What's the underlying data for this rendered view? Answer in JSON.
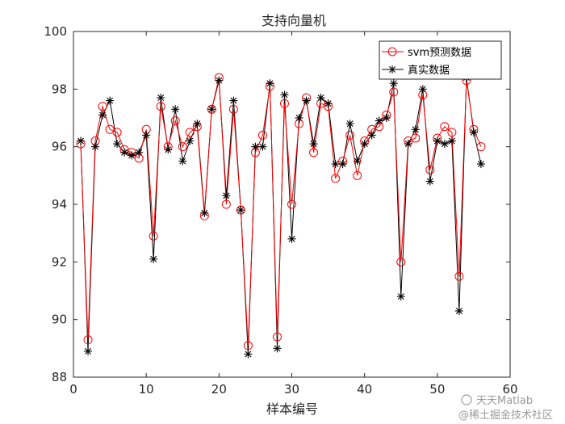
{
  "chart_data": {
    "type": "line",
    "title": "支持向量机",
    "xlabel": "样本编号",
    "ylabel": "",
    "xlim": [
      0,
      60
    ],
    "ylim": [
      88,
      100
    ],
    "xticks": [
      "0",
      "10",
      "20",
      "30",
      "40",
      "50",
      "60"
    ],
    "yticks": [
      "88",
      "90",
      "92",
      "94",
      "96",
      "98",
      "100"
    ],
    "grid": false,
    "legend_position": "top-right",
    "series": [
      {
        "name": "svm预测数据",
        "color": "#ff0000",
        "marker": "circle",
        "x": [
          1,
          2,
          3,
          4,
          5,
          6,
          7,
          8,
          9,
          10,
          11,
          12,
          13,
          14,
          15,
          16,
          17,
          18,
          19,
          20,
          21,
          22,
          23,
          24,
          25,
          26,
          27,
          28,
          29,
          30,
          31,
          32,
          33,
          34,
          35,
          36,
          37,
          38,
          39,
          40,
          41,
          42,
          43,
          44,
          45,
          46,
          47,
          48,
          49,
          50,
          51,
          52,
          53,
          54,
          55,
          56
        ],
        "values": [
          96.1,
          89.3,
          96.2,
          97.4,
          96.6,
          96.5,
          95.9,
          95.8,
          95.6,
          96.6,
          92.9,
          97.4,
          96.0,
          96.9,
          96.0,
          96.5,
          96.7,
          93.6,
          97.3,
          98.4,
          94.0,
          97.3,
          93.8,
          89.1,
          95.8,
          96.4,
          98.1,
          89.4,
          97.5,
          94.0,
          96.8,
          97.7,
          95.8,
          97.5,
          97.4,
          94.9,
          95.5,
          96.4,
          95.0,
          96.2,
          96.6,
          96.7,
          97.1,
          97.9,
          92.0,
          96.2,
          96.3,
          97.8,
          95.2,
          96.3,
          96.7,
          96.5,
          91.5,
          98.3,
          96.6,
          96.0
        ]
      },
      {
        "name": "真实数据",
        "color": "#000000",
        "marker": "asterisk",
        "x": [
          1,
          2,
          3,
          4,
          5,
          6,
          7,
          8,
          9,
          10,
          11,
          12,
          13,
          14,
          15,
          16,
          17,
          18,
          19,
          20,
          21,
          22,
          23,
          24,
          25,
          26,
          27,
          28,
          29,
          30,
          31,
          32,
          33,
          34,
          35,
          36,
          37,
          38,
          39,
          40,
          41,
          42,
          43,
          44,
          45,
          46,
          47,
          48,
          49,
          50,
          51,
          52,
          53,
          54,
          55,
          56
        ],
        "values": [
          96.2,
          88.9,
          96.0,
          97.1,
          97.6,
          96.1,
          95.8,
          95.7,
          95.8,
          96.4,
          92.1,
          97.7,
          95.9,
          97.3,
          95.5,
          96.2,
          96.8,
          93.7,
          97.3,
          98.3,
          94.3,
          97.6,
          93.8,
          88.8,
          96.0,
          96.0,
          98.2,
          89.0,
          97.8,
          92.8,
          97.0,
          97.6,
          96.1,
          97.7,
          97.5,
          95.4,
          95.4,
          96.8,
          95.5,
          96.1,
          96.4,
          96.9,
          97.0,
          98.2,
          90.8,
          96.1,
          96.6,
          98.0,
          94.8,
          96.2,
          96.1,
          96.2,
          90.3,
          98.4,
          96.5,
          95.4
        ]
      }
    ]
  },
  "watermark": {
    "line1": "天天Matlab",
    "line2": "@稀土掘金技术社区"
  }
}
